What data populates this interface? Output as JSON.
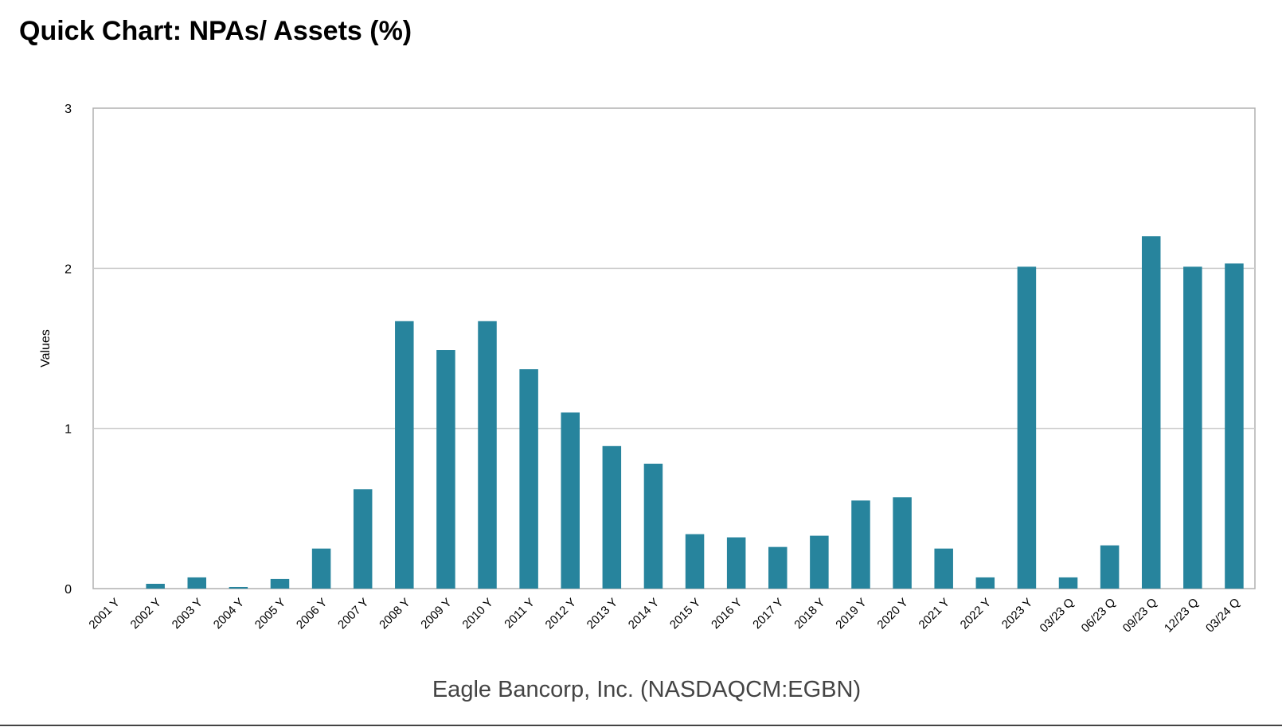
{
  "title": "Quick Chart: NPAs/ Assets (%)",
  "chart_data": {
    "type": "bar",
    "title": "Quick Chart: NPAs/ Assets (%)",
    "xlabel": "Eagle Bancorp, Inc. (NASDAQCM:EGBN)",
    "ylabel": "Values",
    "ylim": [
      0,
      3
    ],
    "yticks": [
      0,
      1,
      2,
      3
    ],
    "grid": true,
    "categories": [
      "2001 Y",
      "2002 Y",
      "2003 Y",
      "2004 Y",
      "2005 Y",
      "2006 Y",
      "2007 Y",
      "2008 Y",
      "2009 Y",
      "2010 Y",
      "2011 Y",
      "2012 Y",
      "2013 Y",
      "2014 Y",
      "2015 Y",
      "2016 Y",
      "2017 Y",
      "2018 Y",
      "2019 Y",
      "2020 Y",
      "2021 Y",
      "2022 Y",
      "2023 Y",
      "03/23 Q",
      "06/23 Q",
      "09/23 Q",
      "12/23 Q",
      "03/24 Q"
    ],
    "values": [
      0.0,
      0.03,
      0.07,
      0.01,
      0.06,
      0.25,
      0.62,
      1.67,
      1.49,
      1.67,
      1.37,
      1.1,
      0.89,
      0.78,
      0.34,
      0.32,
      0.26,
      0.33,
      0.55,
      0.57,
      0.25,
      0.07,
      2.01,
      0.07,
      0.27,
      2.2,
      2.01,
      2.03
    ],
    "colors": {
      "bar": "#27849D",
      "grid": "#cccccc",
      "axis_border": "#b0b0b0",
      "text": "#000000",
      "xlabel_text": "#444444"
    }
  }
}
